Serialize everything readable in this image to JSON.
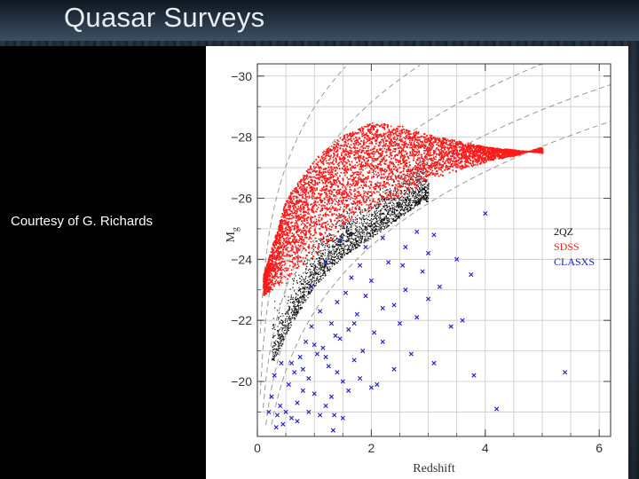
{
  "slide": {
    "title": "Quasar Surveys",
    "credit": "Courtesy of G. Richards"
  },
  "chart_data": {
    "type": "scatter",
    "xlabel": "Redshift",
    "ylabel": "M",
    "ylabel_subscript": "g",
    "xlim": [
      0,
      6.2
    ],
    "ylim": [
      -18.2,
      -30.4
    ],
    "y_inverted": true,
    "x_ticks": [
      "0",
      "2",
      "4",
      "6"
    ],
    "x_tick_values": [
      0,
      2,
      4,
      6
    ],
    "y_ticks": [
      "−30",
      "−28",
      "−26",
      "−24",
      "−22",
      "−20"
    ],
    "y_tick_values": [
      -30,
      -28,
      -26,
      -24,
      -22,
      -20
    ],
    "grid": true,
    "legend_position": "right",
    "series": [
      {
        "name": "2QZ",
        "color": "#111111",
        "marker": "dot",
        "ridge": [
          [
            0.3,
            -21.0
          ],
          [
            0.6,
            -22.2
          ],
          [
            1.0,
            -23.4
          ],
          [
            1.5,
            -24.4
          ],
          [
            2.0,
            -25.0
          ],
          [
            2.3,
            -25.4
          ],
          [
            2.6,
            -25.8
          ],
          [
            2.9,
            -26.2
          ]
        ],
        "thickness_mag": 2.1,
        "count_estimate": 2400
      },
      {
        "name": "SDSS",
        "color": "#ff1a1a",
        "marker": "dot",
        "lower_envelope": [
          [
            0.1,
            -22.8
          ],
          [
            0.5,
            -23.3
          ],
          [
            1.0,
            -24.1
          ],
          [
            1.5,
            -25.0
          ],
          [
            2.0,
            -25.6
          ],
          [
            2.5,
            -26.0
          ],
          [
            3.0,
            -26.6
          ],
          [
            3.5,
            -26.9
          ],
          [
            4.0,
            -27.2
          ],
          [
            4.5,
            -27.4
          ],
          [
            5.0,
            -27.7
          ]
        ],
        "upper_envelope": [
          [
            0.1,
            -23.5
          ],
          [
            0.5,
            -26.0
          ],
          [
            1.0,
            -27.3
          ],
          [
            1.5,
            -28.1
          ],
          [
            2.0,
            -28.5
          ],
          [
            2.5,
            -28.4
          ],
          [
            3.0,
            -28.1
          ],
          [
            3.5,
            -27.9
          ],
          [
            4.0,
            -27.7
          ],
          [
            4.5,
            -27.6
          ],
          [
            5.0,
            -27.5
          ]
        ],
        "count_estimate": 9000
      },
      {
        "name": "CLASXS",
        "color": "#1a1acc",
        "marker": "x",
        "points": [
          [
            0.25,
            -19.5
          ],
          [
            0.35,
            -18.9
          ],
          [
            0.45,
            -18.6
          ],
          [
            0.5,
            -19.0
          ],
          [
            0.55,
            -19.9
          ],
          [
            0.6,
            -18.8
          ],
          [
            0.65,
            -20.3
          ],
          [
            0.7,
            -19.3
          ],
          [
            0.75,
            -20.8
          ],
          [
            0.8,
            -19.7
          ],
          [
            0.85,
            -21.3
          ],
          [
            0.9,
            -20.1
          ],
          [
            0.95,
            -21.8
          ],
          [
            1.0,
            -19.6
          ],
          [
            1.05,
            -20.9
          ],
          [
            1.1,
            -22.3
          ],
          [
            1.15,
            -21.1
          ],
          [
            1.2,
            -19.2
          ],
          [
            1.25,
            -20.5
          ],
          [
            1.3,
            -21.9
          ],
          [
            1.35,
            -18.9
          ],
          [
            1.4,
            -22.6
          ],
          [
            1.45,
            -21.4
          ],
          [
            1.5,
            -20.0
          ],
          [
            1.55,
            -22.9
          ],
          [
            1.6,
            -21.7
          ],
          [
            1.65,
            -23.4
          ],
          [
            1.7,
            -20.7
          ],
          [
            1.75,
            -22.2
          ],
          [
            1.8,
            -23.8
          ],
          [
            1.85,
            -21.0
          ],
          [
            1.9,
            -22.8
          ],
          [
            2.0,
            -23.3
          ],
          [
            2.05,
            -21.6
          ],
          [
            2.1,
            -19.9
          ],
          [
            2.2,
            -22.4
          ],
          [
            2.3,
            -23.9
          ],
          [
            2.4,
            -20.4
          ],
          [
            2.5,
            -21.9
          ],
          [
            2.6,
            -23.0
          ],
          [
            2.7,
            -20.9
          ],
          [
            2.8,
            -22.1
          ],
          [
            2.9,
            -23.6
          ],
          [
            3.0,
            -24.2
          ],
          [
            3.1,
            -20.6
          ],
          [
            3.2,
            -23.1
          ],
          [
            3.4,
            -21.8
          ],
          [
            3.5,
            -24.0
          ],
          [
            3.6,
            -22.0
          ],
          [
            3.75,
            -23.5
          ],
          [
            3.8,
            -20.2
          ],
          [
            4.0,
            -25.5
          ],
          [
            4.2,
            -19.1
          ],
          [
            0.3,
            -20.2
          ],
          [
            0.4,
            -19.2
          ],
          [
            0.6,
            -20.6
          ],
          [
            0.7,
            -18.7
          ],
          [
            0.8,
            -20.4
          ],
          [
            0.9,
            -19.0
          ],
          [
            1.0,
            -21.2
          ],
          [
            1.1,
            -18.9
          ],
          [
            1.2,
            -20.8
          ],
          [
            1.3,
            -19.5
          ],
          [
            1.4,
            -20.3
          ],
          [
            1.5,
            -18.8
          ],
          [
            1.6,
            -19.7
          ],
          [
            1.7,
            -21.9
          ],
          [
            1.8,
            -20.1
          ],
          [
            2.0,
            -19.8
          ],
          [
            2.2,
            -21.3
          ],
          [
            2.4,
            -22.5
          ],
          [
            2.6,
            -24.4
          ],
          [
            2.8,
            -24.9
          ],
          [
            3.0,
            -22.7
          ],
          [
            5.4,
            -20.3
          ],
          [
            0.2,
            -19.0
          ],
          [
            0.33,
            -18.5
          ],
          [
            0.42,
            -20.6
          ],
          [
            1.33,
            -18.4
          ],
          [
            1.37,
            -21.5
          ],
          [
            1.9,
            -24.4
          ],
          [
            2.2,
            -24.7
          ],
          [
            1.2,
            -23.9
          ],
          [
            0.95,
            -23.1
          ],
          [
            1.45,
            -24.6
          ],
          [
            2.55,
            -23.8
          ],
          [
            3.1,
            -24.8
          ]
        ]
      }
    ],
    "model_curves": "dashed magnitude-limit curves"
  }
}
